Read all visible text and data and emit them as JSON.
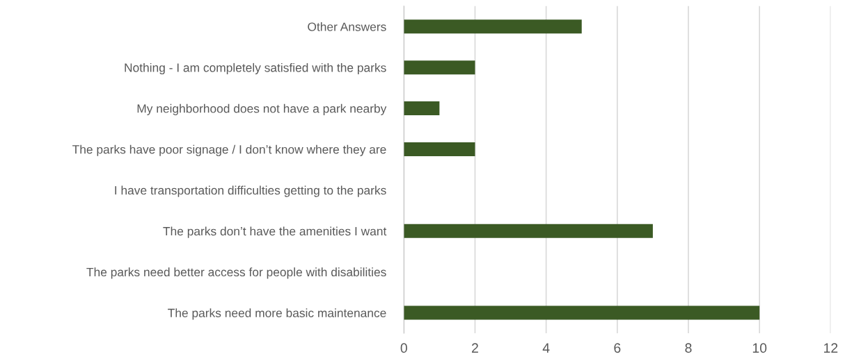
{
  "chart_data": {
    "type": "bar",
    "orientation": "horizontal",
    "categories": [
      "Other Answers",
      "Nothing - I am completely satisfied with the parks",
      "My neighborhood does not have a park nearby",
      "The parks have poor signage / I don’t know where they are",
      "I have transportation difficulties getting to the parks",
      "The parks don’t have the amenities I want",
      "The parks need better access for people with disabilities",
      "The parks need more basic maintenance"
    ],
    "values": [
      5,
      2,
      1,
      2,
      0,
      7,
      0,
      10
    ],
    "color": "#3b5a24",
    "xlim": [
      0,
      12
    ],
    "xticks": [
      0,
      2,
      4,
      6,
      8,
      10,
      12
    ],
    "grid": "x"
  }
}
